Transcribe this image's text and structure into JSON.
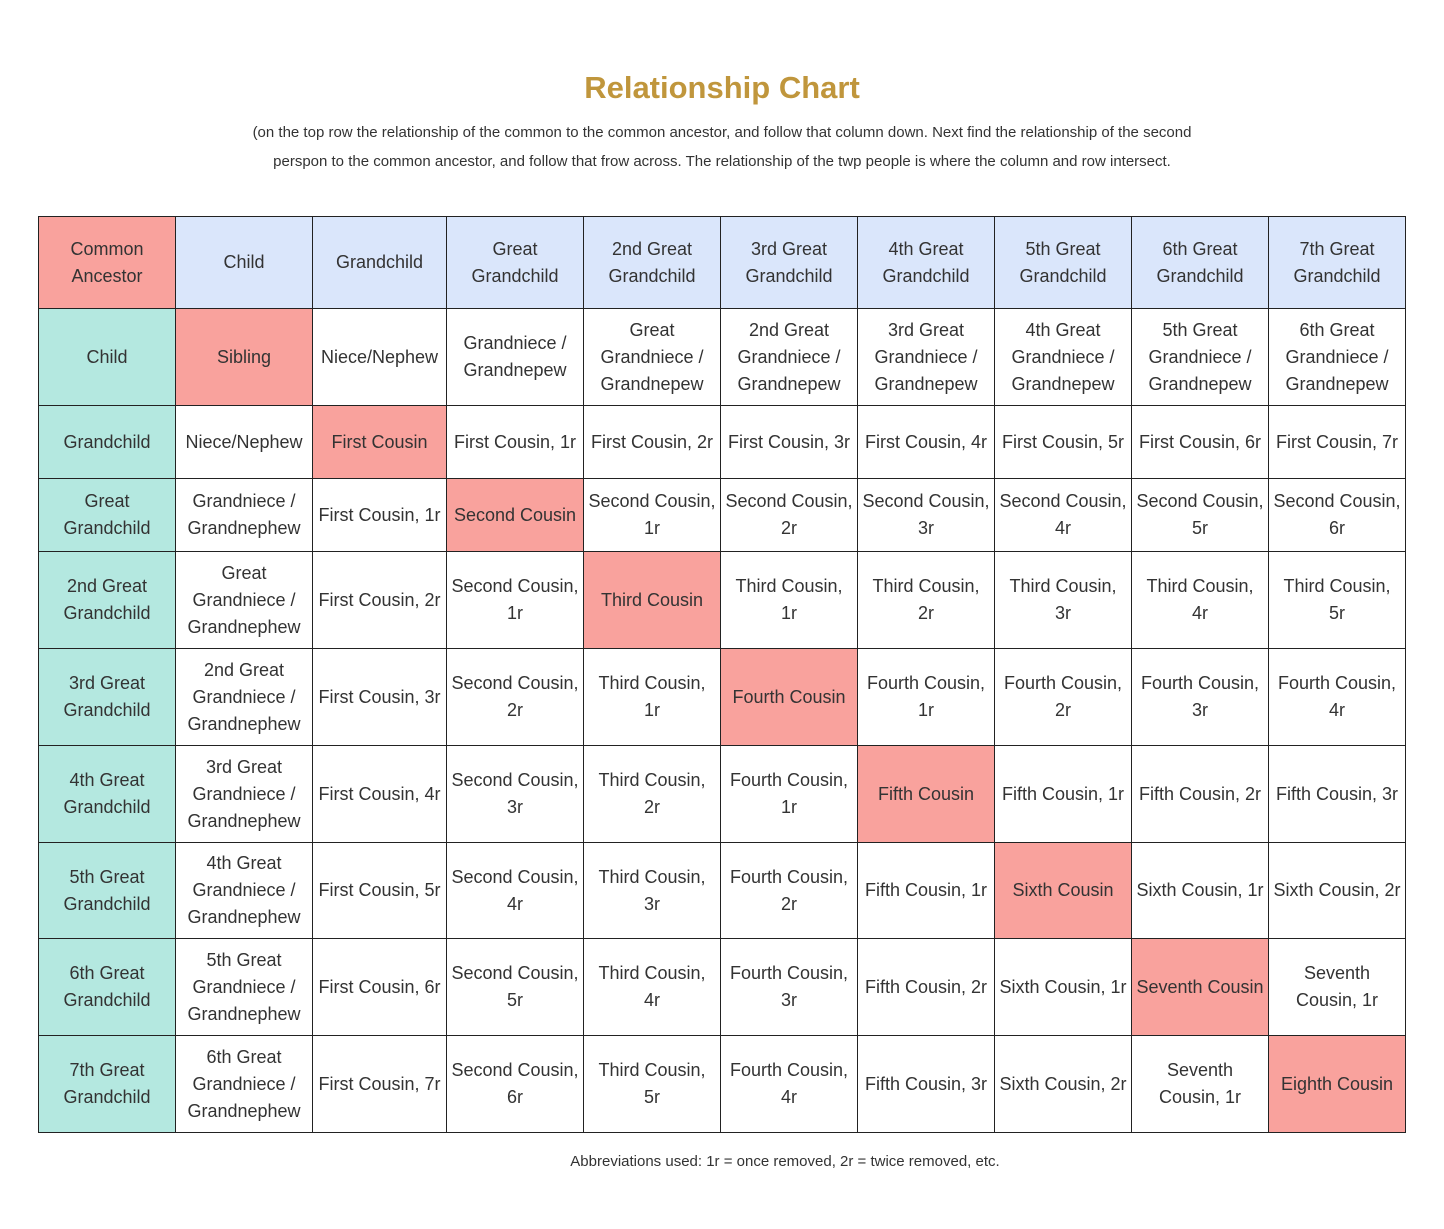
{
  "title": "Relationship Chart",
  "subtitle": "(on the top row the relationship of the common to the common ancestor, and follow  that column down. Next find the relationship of the second perspon to the common ancestor, and follow that frow across. The relationship of  the twp people is where the column and row intersect.",
  "colors": {
    "title": "#c0963c",
    "header": "#dae6fb",
    "row_header": "#b4e8e0",
    "highlight": "#f9a29d"
  },
  "table": {
    "corner": "Common Ancestor",
    "columns": [
      "Child",
      "Grandchild",
      "Great Grandchild",
      "2nd Great Grandchild",
      "3rd Great Grandchild",
      "4th Great Grandchild",
      "5th Great Grandchild",
      "6th Great Grandchild",
      "7th Great Grandchild"
    ],
    "rows": [
      {
        "label": "Child",
        "cells": [
          "Sibling",
          "Niece/Nephew",
          "Grandniece / Grandnepew",
          "Great Grandniece / Grandnepew",
          "2nd Great Grandniece / Grandnepew",
          "3rd Great Grandniece / Grandnepew",
          "4th Great Grandniece / Grandnepew",
          "5th Great Grandniece / Grandnepew",
          "6th Great Grandniece / Grandnepew"
        ]
      },
      {
        "label": "Grandchild",
        "cells": [
          "Niece/Nephew",
          "First Cousin",
          "First Cousin, 1r",
          "First Cousin, 2r",
          "First Cousin, 3r",
          "First Cousin, 4r",
          "First Cousin, 5r",
          "First Cousin, 6r",
          "First Cousin, 7r"
        ]
      },
      {
        "label": "Great Grandchild",
        "cells": [
          "Grandniece / Grandnephew",
          "First Cousin, 1r",
          "Second Cousin",
          "Second Cousin, 1r",
          "Second Cousin, 2r",
          "Second Cousin, 3r",
          "Second Cousin, 4r",
          "Second Cousin, 5r",
          "Second Cousin, 6r"
        ]
      },
      {
        "label": "2nd Great Grandchild",
        "cells": [
          "Great Grandniece / Grandnephew",
          "First Cousin, 2r",
          "Second Cousin, 1r",
          "Third Cousin",
          "Third Cousin, 1r",
          "Third Cousin, 2r",
          "Third Cousin, 3r",
          "Third Cousin, 4r",
          "Third Cousin, 5r"
        ]
      },
      {
        "label": "3rd Great Grandchild",
        "cells": [
          "2nd Great Grandniece / Grandnephew",
          "First Cousin, 3r",
          "Second Cousin, 2r",
          "Third Cousin, 1r",
          "Fourth Cousin",
          "Fourth Cousin, 1r",
          "Fourth Cousin, 2r",
          "Fourth Cousin, 3r",
          "Fourth Cousin, 4r"
        ]
      },
      {
        "label": "4th Great Grandchild",
        "cells": [
          "3rd Great Grandniece / Grandnephew",
          "First Cousin, 4r",
          "Second Cousin, 3r",
          "Third Cousin, 2r",
          "Fourth Cousin, 1r",
          "Fifth Cousin",
          "Fifth Cousin, 1r",
          "Fifth Cousin, 2r",
          "Fifth Cousin, 3r"
        ]
      },
      {
        "label": "5th Great Grandchild",
        "cells": [
          "4th Great Grandniece / Grandnephew",
          "First Cousin, 5r",
          "Second Cousin, 4r",
          "Third Cousin, 3r",
          "Fourth Cousin, 2r",
          "Fifth Cousin, 1r",
          "Sixth Cousin",
          "Sixth Cousin, 1r",
          "Sixth Cousin, 2r"
        ]
      },
      {
        "label": "6th Great Grandchild",
        "cells": [
          "5th Great Grandniece / Grandnephew",
          "First Cousin, 6r",
          "Second Cousin, 5r",
          "Third Cousin, 4r",
          "Fourth Cousin, 3r",
          "Fifth Cousin, 2r",
          "Sixth Cousin, 1r",
          "Seventh Cousin",
          "Seventh Cousin, 1r"
        ]
      },
      {
        "label": "7th Great Grandchild",
        "cells": [
          "6th Great Grandniece / Grandnephew",
          "First Cousin, 7r",
          "Second Cousin, 6r",
          "Third Cousin, 5r",
          "Fourth Cousin, 4r",
          "Fifth Cousin, 3r",
          "Sixth Cousin, 2r",
          "Seventh Cousin, 1r",
          "Eighth Cousin"
        ]
      }
    ]
  },
  "footer": "Abbreviations used: 1r = once removed, 2r = twice removed, etc."
}
